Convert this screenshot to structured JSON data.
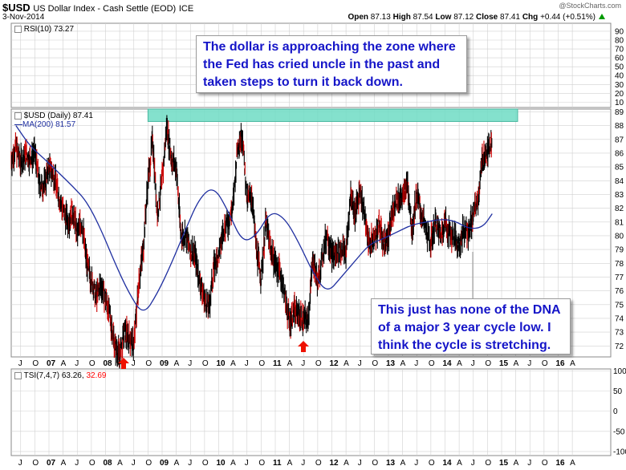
{
  "header": {
    "symbol": "$USD",
    "description": "US Dollar Index - Cash Settle (EOD)",
    "exchange": "ICE",
    "date": "3-Nov-2014",
    "open_label": "Open",
    "open": "87.13",
    "high_label": "High",
    "high": "87.54",
    "low_label": "Low",
    "low": "87.12",
    "close_label": "Close",
    "close": "87.41",
    "chg_label": "Chg",
    "chg": "+0.44 (+0.51%)",
    "watermark": "@StockCharts.com"
  },
  "rsi_panel": {
    "legend": "RSI(10) 73.27",
    "ticks": [
      "90",
      "80",
      "70",
      "60",
      "50",
      "40",
      "30",
      "20",
      "10"
    ]
  },
  "price_panel": {
    "legend_price": "$USD (Daily) 87.41",
    "legend_ma": "MA(200) 81.57",
    "ticks": [
      "89",
      "88",
      "87",
      "86",
      "85",
      "84",
      "83",
      "82",
      "81",
      "80",
      "79",
      "78",
      "77",
      "76",
      "75",
      "74",
      "73",
      "72"
    ]
  },
  "tsi_panel": {
    "legend": "TSI(7,4,7) 63.26,",
    "legend_signal": "32.69",
    "ticks": [
      "100",
      "50",
      "0",
      "-50",
      "-100"
    ]
  },
  "x_axis_labels": [
    "J",
    "O",
    "07",
    "A",
    "J",
    "O",
    "08",
    "A",
    "J",
    "O",
    "09",
    "A",
    "J",
    "O",
    "10",
    "A",
    "J",
    "O",
    "11",
    "A",
    "J",
    "O",
    "12",
    "A",
    "J",
    "O",
    "13",
    "A",
    "J",
    "O",
    "14",
    "A",
    "J",
    "O",
    "15",
    "A",
    "J",
    "O",
    "16",
    "A"
  ],
  "annotations": {
    "top": "The dollar is approaching the zone where the Fed has cried uncle in the past and taken steps to turn it back down.",
    "bottom": "This just has none of the DNA of a major 3 year cycle low. I think the cycle is stretching."
  },
  "colors": {
    "price_bars": "#000000",
    "down_bars": "#cc0000",
    "ma_line": "#1f2fa0",
    "zone": "#6fdcc4",
    "annotation_text": "#1515c8",
    "arrow": "#ee1100",
    "grid": "#d0d0d0",
    "chg_up": "#009900",
    "tsi_signal": "#ff0000"
  },
  "chart_data": {
    "type": "line",
    "title": "$USD US Dollar Index - Cash Settle (EOD) ICE",
    "x_axis": "date",
    "ylim": [
      71.2,
      89.2
    ],
    "grid": true,
    "highlighted_zone": [
      88.3,
      89.2
    ],
    "low_markers": [
      "2008-04",
      "2011-05"
    ],
    "series": [
      {
        "name": "$USD (Daily)",
        "points": [
          [
            "2006-05",
            85.5
          ],
          [
            "2006-06",
            86.5
          ],
          [
            "2006-07",
            85.3
          ],
          [
            "2006-08",
            85.9
          ],
          [
            "2006-09",
            85.6
          ],
          [
            "2006-10",
            86.0
          ],
          [
            "2006-11",
            83.7
          ],
          [
            "2006-12",
            83.6
          ],
          [
            "2007-01",
            84.9
          ],
          [
            "2007-02",
            84.4
          ],
          [
            "2007-03",
            83.0
          ],
          [
            "2007-04",
            81.8
          ],
          [
            "2007-05",
            81.0
          ],
          [
            "2007-06",
            81.8
          ],
          [
            "2007-07",
            80.2
          ],
          [
            "2007-08",
            81.0
          ],
          [
            "2007-09",
            78.0
          ],
          [
            "2007-10",
            76.8
          ],
          [
            "2007-11",
            75.5
          ],
          [
            "2007-12",
            76.5
          ],
          [
            "2008-01",
            75.5
          ],
          [
            "2008-02",
            74.0
          ],
          [
            "2008-03",
            72.0
          ],
          [
            "2008-04",
            71.3
          ],
          [
            "2008-05",
            73.0
          ],
          [
            "2008-06",
            72.6
          ],
          [
            "2008-07",
            72.0
          ],
          [
            "2008-08",
            76.5
          ],
          [
            "2008-09",
            79.0
          ],
          [
            "2008-10",
            84.0
          ],
          [
            "2008-11",
            87.0
          ],
          [
            "2008-12",
            81.5
          ],
          [
            "2009-01",
            84.0
          ],
          [
            "2009-02",
            88.0
          ],
          [
            "2009-03",
            85.5
          ],
          [
            "2009-04",
            85.0
          ],
          [
            "2009-05",
            80.0
          ],
          [
            "2009-06",
            80.0
          ],
          [
            "2009-07",
            79.0
          ],
          [
            "2009-08",
            78.5
          ],
          [
            "2009-09",
            76.7
          ],
          [
            "2009-10",
            75.3
          ],
          [
            "2009-11",
            74.8
          ],
          [
            "2009-12",
            77.8
          ],
          [
            "2010-01",
            78.5
          ],
          [
            "2010-02",
            80.5
          ],
          [
            "2010-03",
            81.0
          ],
          [
            "2010-04",
            82.0
          ],
          [
            "2010-05",
            86.5
          ],
          [
            "2010-06",
            87.5
          ],
          [
            "2010-07",
            82.5
          ],
          [
            "2010-08",
            83.0
          ],
          [
            "2010-09",
            79.0
          ],
          [
            "2010-10",
            77.0
          ],
          [
            "2010-11",
            81.0
          ],
          [
            "2010-12",
            79.0
          ],
          [
            "2011-01",
            78.0
          ],
          [
            "2011-02",
            77.3
          ],
          [
            "2011-03",
            75.8
          ],
          [
            "2011-04",
            73.8
          ],
          [
            "2011-05",
            74.5
          ],
          [
            "2011-06",
            74.3
          ],
          [
            "2011-07",
            73.9
          ],
          [
            "2011-08",
            74.0
          ],
          [
            "2011-09",
            78.5
          ],
          [
            "2011-10",
            76.5
          ],
          [
            "2011-11",
            78.5
          ],
          [
            "2011-12",
            80.2
          ],
          [
            "2012-01",
            78.5
          ],
          [
            "2012-02",
            78.8
          ],
          [
            "2012-03",
            79.0
          ],
          [
            "2012-04",
            78.8
          ],
          [
            "2012-05",
            83.0
          ],
          [
            "2012-06",
            81.5
          ],
          [
            "2012-07",
            83.5
          ],
          [
            "2012-08",
            81.2
          ],
          [
            "2012-09",
            79.3
          ],
          [
            "2012-10",
            79.8
          ],
          [
            "2012-11",
            80.8
          ],
          [
            "2012-12",
            79.5
          ],
          [
            "2013-01",
            79.8
          ],
          [
            "2013-02",
            82.0
          ],
          [
            "2013-03",
            82.8
          ],
          [
            "2013-04",
            82.6
          ],
          [
            "2013-05",
            84.0
          ],
          [
            "2013-06",
            80.5
          ],
          [
            "2013-07",
            83.0
          ],
          [
            "2013-08",
            81.5
          ],
          [
            "2013-09",
            80.2
          ],
          [
            "2013-10",
            79.5
          ],
          [
            "2013-11",
            81.0
          ],
          [
            "2013-12",
            80.0
          ],
          [
            "2014-01",
            81.0
          ],
          [
            "2014-02",
            80.2
          ],
          [
            "2014-03",
            79.8
          ],
          [
            "2014-04",
            79.3
          ],
          [
            "2014-05",
            80.4
          ],
          [
            "2014-06",
            80.3
          ],
          [
            "2014-07",
            81.5
          ],
          [
            "2014-08",
            82.7
          ],
          [
            "2014-09",
            85.7
          ],
          [
            "2014-10",
            85.9
          ],
          [
            "2014-11",
            87.4
          ]
        ]
      },
      {
        "name": "MA(200)",
        "points": [
          [
            "2006-06",
            88.0
          ],
          [
            "2006-09",
            86.5
          ],
          [
            "2006-12",
            85.6
          ],
          [
            "2007-03",
            84.6
          ],
          [
            "2007-06",
            83.6
          ],
          [
            "2007-09",
            82.5
          ],
          [
            "2007-12",
            80.5
          ],
          [
            "2008-03",
            78.0
          ],
          [
            "2008-06",
            75.8
          ],
          [
            "2008-09",
            74.2
          ],
          [
            "2008-12",
            75.8
          ],
          [
            "2009-03",
            78.0
          ],
          [
            "2009-06",
            80.5
          ],
          [
            "2009-09",
            82.8
          ],
          [
            "2009-12",
            83.6
          ],
          [
            "2010-03",
            81.8
          ],
          [
            "2010-06",
            79.5
          ],
          [
            "2010-09",
            80.0
          ],
          [
            "2010-12",
            81.8
          ],
          [
            "2011-03",
            81.3
          ],
          [
            "2011-06",
            79.5
          ],
          [
            "2011-09",
            77.3
          ],
          [
            "2011-12",
            75.8
          ],
          [
            "2012-03",
            77.0
          ],
          [
            "2012-06",
            78.2
          ],
          [
            "2012-09",
            79.4
          ],
          [
            "2012-12",
            79.8
          ],
          [
            "2013-03",
            80.3
          ],
          [
            "2013-06",
            80.8
          ],
          [
            "2013-09",
            81.0
          ],
          [
            "2013-12",
            81.2
          ],
          [
            "2014-03",
            81.1
          ],
          [
            "2014-06",
            80.5
          ],
          [
            "2014-09",
            80.6
          ],
          [
            "2014-11",
            81.6
          ]
        ]
      }
    ]
  }
}
